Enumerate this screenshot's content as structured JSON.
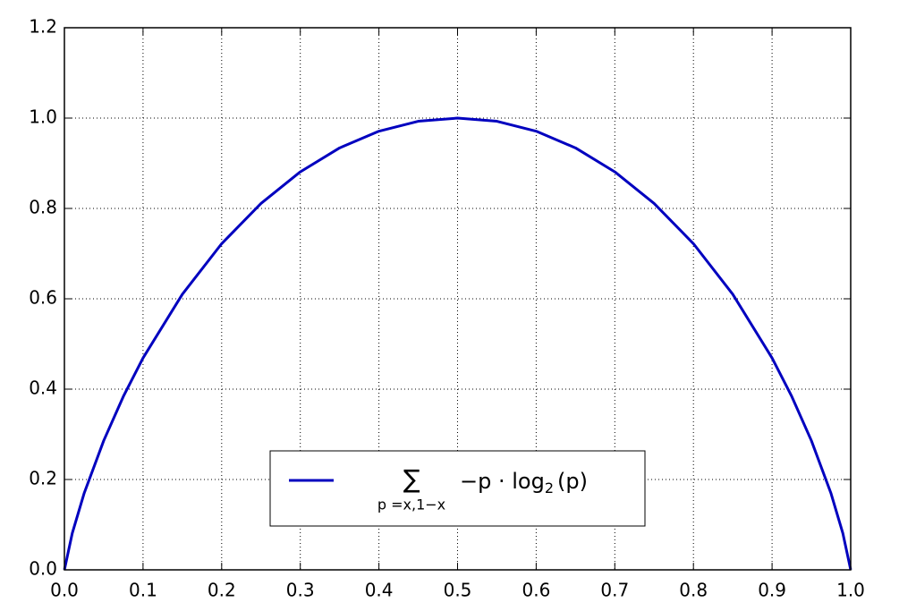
{
  "chart_data": {
    "type": "line",
    "x": [
      0,
      0.01,
      0.025,
      0.05,
      0.075,
      0.1,
      0.15,
      0.2,
      0.25,
      0.3,
      0.35,
      0.4,
      0.45,
      0.5,
      0.55,
      0.6,
      0.65,
      0.7,
      0.75,
      0.8,
      0.85,
      0.9,
      0.925,
      0.95,
      0.975,
      0.99,
      1
    ],
    "series": [
      {
        "name": [
          "∑",
          "p =x,1−x",
          "−p · log",
          "2",
          "(p)"
        ],
        "color": "#0000bf",
        "values": [
          0,
          0.081,
          0.169,
          0.286,
          0.384,
          0.469,
          0.61,
          0.722,
          0.811,
          0.881,
          0.934,
          0.971,
          0.993,
          1,
          0.993,
          0.971,
          0.934,
          0.881,
          0.811,
          0.722,
          0.61,
          0.469,
          0.384,
          0.286,
          0.169,
          0.081,
          0
        ]
      }
    ],
    "xlim": [
      0,
      1
    ],
    "ylim": [
      0,
      1.2
    ],
    "xticks": [
      {
        "value": 0,
        "label": "0.0"
      },
      0.1,
      0.2,
      0.3,
      0.4,
      0.5,
      0.6,
      0.7,
      0.8,
      0.9,
      {
        "value": 1,
        "label": "1.0"
      }
    ],
    "yticks": [
      {
        "value": 0,
        "label": "0.0"
      },
      0.2,
      0.4,
      0.6,
      0.8,
      {
        "value": 1,
        "label": "1.0"
      },
      1.2
    ],
    "grid": true,
    "legend": "lower center"
  }
}
